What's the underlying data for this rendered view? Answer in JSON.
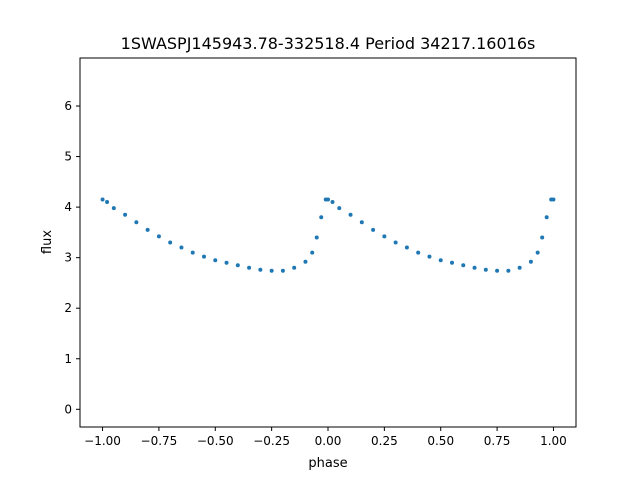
{
  "chart_data": {
    "type": "scatter",
    "title": "1SWASPJ145943.78-332518.4 Period 34217.16016s",
    "xlabel": "phase",
    "ylabel": "flux",
    "xlim": [
      -1.1,
      1.1
    ],
    "ylim": [
      -0.35,
      6.95
    ],
    "x_ticks": [
      -1.0,
      -0.75,
      -0.5,
      -0.25,
      0.0,
      0.25,
      0.5,
      0.75,
      1.0
    ],
    "x_tick_labels": [
      "−1.00",
      "−0.75",
      "−0.50",
      "−0.25",
      "0.00",
      "0.25",
      "0.50",
      "0.75",
      "1.00"
    ],
    "y_ticks": [
      0,
      1,
      2,
      3,
      4,
      5,
      6
    ],
    "y_tick_labels": [
      "0",
      "1",
      "2",
      "3",
      "4",
      "5",
      "6"
    ],
    "grid": false,
    "marker_color": "#1f77b4",
    "series": [
      {
        "points": [
          [
            -1.0,
            4.15
          ],
          [
            -0.98,
            4.1
          ],
          [
            -0.95,
            3.98
          ],
          [
            -0.9,
            3.85
          ],
          [
            -0.85,
            3.7
          ],
          [
            -0.8,
            3.55
          ],
          [
            -0.75,
            3.42
          ],
          [
            -0.7,
            3.3
          ],
          [
            -0.65,
            3.2
          ],
          [
            -0.6,
            3.1
          ],
          [
            -0.55,
            3.02
          ],
          [
            -0.5,
            2.95
          ],
          [
            -0.45,
            2.9
          ],
          [
            -0.4,
            2.85
          ],
          [
            -0.35,
            2.8
          ],
          [
            -0.3,
            2.76
          ],
          [
            -0.25,
            2.74
          ],
          [
            -0.2,
            2.74
          ],
          [
            -0.15,
            2.8
          ],
          [
            -0.1,
            2.92
          ],
          [
            -0.07,
            3.1
          ],
          [
            -0.05,
            3.4
          ],
          [
            -0.03,
            3.8
          ],
          [
            -0.01,
            4.15
          ],
          [
            0.0,
            4.15
          ],
          [
            0.02,
            4.1
          ],
          [
            0.05,
            3.98
          ],
          [
            0.1,
            3.85
          ],
          [
            0.15,
            3.7
          ],
          [
            0.2,
            3.55
          ],
          [
            0.25,
            3.42
          ],
          [
            0.3,
            3.3
          ],
          [
            0.35,
            3.2
          ],
          [
            0.4,
            3.1
          ],
          [
            0.45,
            3.02
          ],
          [
            0.5,
            2.95
          ],
          [
            0.55,
            2.9
          ],
          [
            0.6,
            2.85
          ],
          [
            0.65,
            2.8
          ],
          [
            0.7,
            2.76
          ],
          [
            0.75,
            2.74
          ],
          [
            0.8,
            2.74
          ],
          [
            0.85,
            2.8
          ],
          [
            0.9,
            2.92
          ],
          [
            0.93,
            3.1
          ],
          [
            0.95,
            3.4
          ],
          [
            0.97,
            3.8
          ],
          [
            0.99,
            4.15
          ],
          [
            1.0,
            4.15
          ]
        ]
      }
    ]
  }
}
